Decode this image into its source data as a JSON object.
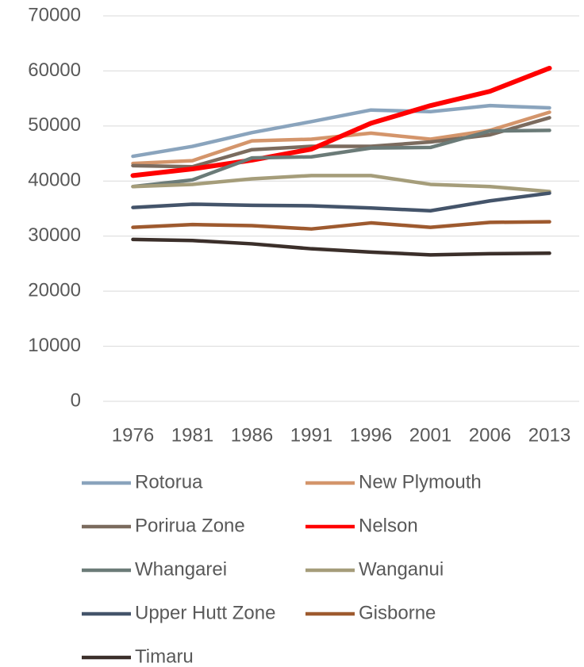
{
  "chart_data": {
    "type": "line",
    "categories": [
      "1976",
      "1981",
      "1986",
      "1991",
      "1996",
      "2001",
      "2006",
      "2013"
    ],
    "series": [
      {
        "name": "Rotorua",
        "color": "#8aa4bd",
        "values": [
          44500,
          46300,
          48800,
          50800,
          52900,
          52600,
          53700,
          53300
        ]
      },
      {
        "name": "New Plymouth",
        "color": "#d4956b",
        "values": [
          43200,
          43700,
          47300,
          47600,
          48700,
          47600,
          49200,
          52500
        ]
      },
      {
        "name": "Porirua Zone",
        "color": "#7b6b5e",
        "values": [
          42800,
          42600,
          45700,
          46300,
          46300,
          47100,
          48400,
          51500
        ]
      },
      {
        "name": "Nelson",
        "color": "#ff0000",
        "values": [
          41000,
          42200,
          43800,
          45800,
          50500,
          53700,
          56300,
          60500
        ]
      },
      {
        "name": "Whangarei",
        "color": "#6b7b78",
        "values": [
          39000,
          40200,
          44200,
          44400,
          46000,
          46100,
          49100,
          49200
        ]
      },
      {
        "name": "Wanganui",
        "color": "#a59d7a",
        "values": [
          39000,
          39400,
          40400,
          41000,
          41000,
          39400,
          39000,
          38100
        ]
      },
      {
        "name": "Upper Hutt Zone",
        "color": "#44546a",
        "values": [
          35200,
          35800,
          35600,
          35500,
          35100,
          34600,
          36400,
          37800
        ]
      },
      {
        "name": "Gisborne",
        "color": "#9e5a2f",
        "values": [
          31600,
          32100,
          31900,
          31300,
          32400,
          31600,
          32500,
          32600
        ]
      },
      {
        "name": "Timaru",
        "color": "#3b2f2a",
        "values": [
          29400,
          29200,
          28600,
          27700,
          27100,
          26600,
          26800,
          26900
        ]
      }
    ],
    "ylim": [
      0,
      70000
    ],
    "yticks": [
      0,
      10000,
      20000,
      30000,
      40000,
      50000,
      60000,
      70000
    ],
    "grid": true,
    "legend": "bottom"
  }
}
